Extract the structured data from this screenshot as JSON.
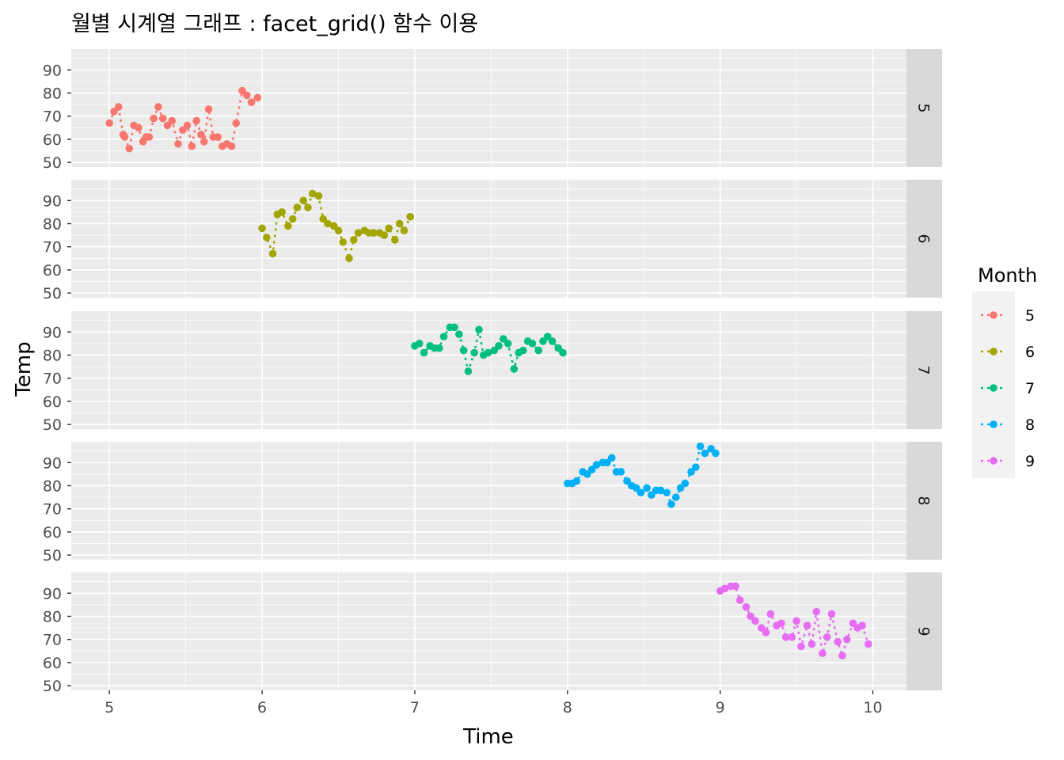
{
  "chart_data": {
    "type": "line",
    "title": "월별 시계열 그래프 : facet_grid() 함수 이용",
    "xlabel": "Time",
    "ylabel": "Temp",
    "xlim": [
      4.75,
      10.22
    ],
    "ylim": [
      48,
      99
    ],
    "x_ticks": [
      5,
      6,
      7,
      8,
      9,
      10
    ],
    "y_ticks": [
      50,
      60,
      70,
      80,
      90
    ],
    "facet_by": "Month",
    "line_style": "dotted",
    "point_shape": "circle",
    "legend": {
      "title": "Month",
      "position": "right"
    },
    "panel_background": "#ebebeb",
    "strip_background": "#d9d9d9",
    "grid_color": "#ffffff",
    "series": [
      {
        "name": "5",
        "color": "#F8766D",
        "x": [
          5.0,
          5.03,
          5.06,
          5.09,
          5.1,
          5.13,
          5.16,
          5.19,
          5.22,
          5.24,
          5.26,
          5.29,
          5.32,
          5.35,
          5.38,
          5.41,
          5.45,
          5.48,
          5.51,
          5.54,
          5.57,
          5.6,
          5.62,
          5.65,
          5.68,
          5.71,
          5.74,
          5.77,
          5.8,
          5.83,
          5.87,
          5.9,
          5.93,
          5.97
        ],
        "y": [
          67,
          72,
          74,
          62,
          61,
          56,
          66,
          65,
          59,
          61,
          61,
          69,
          74,
          69,
          66,
          68,
          58,
          64,
          66,
          57,
          68,
          62,
          59,
          73,
          61,
          61,
          57,
          58,
          57,
          67,
          81,
          79,
          76,
          78
        ]
      },
      {
        "name": "6",
        "color": "#A3A500",
        "x": [
          6.0,
          6.03,
          6.07,
          6.1,
          6.13,
          6.17,
          6.2,
          6.23,
          6.27,
          6.3,
          6.33,
          6.37,
          6.4,
          6.43,
          6.47,
          6.5,
          6.53,
          6.57,
          6.6,
          6.63,
          6.67,
          6.7,
          6.73,
          6.77,
          6.8,
          6.83,
          6.87,
          6.9,
          6.93,
          6.97
        ],
        "y": [
          78,
          74,
          67,
          84,
          85,
          79,
          82,
          87,
          90,
          87,
          93,
          92,
          82,
          80,
          79,
          77,
          72,
          65,
          73,
          76,
          77,
          76,
          76,
          76,
          75,
          78,
          73,
          80,
          77,
          83
        ]
      },
      {
        "name": "7",
        "color": "#00BF7D",
        "x": [
          7.0,
          7.03,
          7.06,
          7.1,
          7.13,
          7.16,
          7.19,
          7.23,
          7.26,
          7.29,
          7.32,
          7.35,
          7.39,
          7.42,
          7.45,
          7.48,
          7.52,
          7.55,
          7.58,
          7.61,
          7.65,
          7.68,
          7.71,
          7.74,
          7.77,
          7.81,
          7.84,
          7.87,
          7.9,
          7.94,
          7.97
        ],
        "y": [
          84,
          85,
          81,
          84,
          83,
          83,
          88,
          92,
          92,
          89,
          82,
          73,
          81,
          91,
          80,
          81,
          82,
          84,
          87,
          85,
          74,
          81,
          82,
          86,
          85,
          82,
          86,
          88,
          86,
          83,
          81
        ]
      },
      {
        "name": "8",
        "color": "#00B0F6",
        "x": [
          8.0,
          8.03,
          8.06,
          8.1,
          8.13,
          8.16,
          8.19,
          8.23,
          8.26,
          8.29,
          8.32,
          8.35,
          8.39,
          8.42,
          8.45,
          8.48,
          8.52,
          8.55,
          8.58,
          8.61,
          8.65,
          8.68,
          8.71,
          8.74,
          8.77,
          8.81,
          8.84,
          8.87,
          8.9,
          8.94,
          8.97
        ],
        "y": [
          81,
          81,
          82,
          86,
          85,
          87,
          89,
          90,
          90,
          92,
          86,
          86,
          82,
          80,
          79,
          77,
          79,
          76,
          78,
          78,
          77,
          72,
          75,
          79,
          81,
          86,
          88,
          97,
          94,
          96,
          94
        ]
      },
      {
        "name": "9",
        "color": "#E76BF3",
        "x": [
          9.0,
          9.03,
          9.07,
          9.1,
          9.13,
          9.17,
          9.2,
          9.23,
          9.27,
          9.3,
          9.33,
          9.37,
          9.4,
          9.43,
          9.47,
          9.5,
          9.53,
          9.57,
          9.6,
          9.63,
          9.67,
          9.7,
          9.73,
          9.77,
          9.8,
          9.83,
          9.87,
          9.9,
          9.93,
          9.97
        ],
        "y": [
          91,
          92,
          93,
          93,
          87,
          84,
          80,
          78,
          75,
          73,
          81,
          76,
          77,
          71,
          71,
          78,
          67,
          76,
          68,
          82,
          64,
          71,
          81,
          69,
          63,
          70,
          77,
          75,
          76,
          68
        ]
      }
    ]
  }
}
